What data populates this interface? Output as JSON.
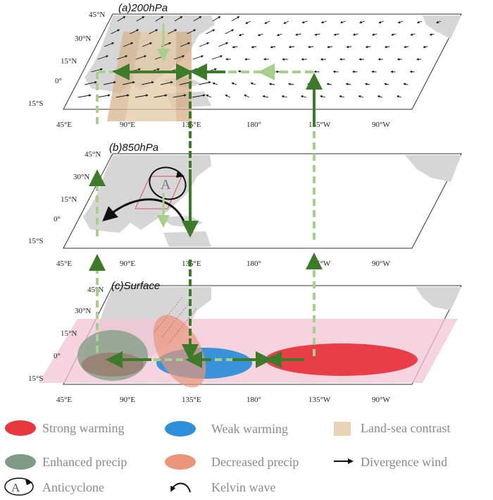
{
  "panels": {
    "a": {
      "title": "(a)200hPa"
    },
    "b": {
      "title": "(b)850hPa"
    },
    "c": {
      "title": "(c)Surface"
    }
  },
  "lat_labels": [
    "45°N",
    "30°N",
    "15°N",
    "0°",
    "15°S"
  ],
  "lon_labels": [
    "45°E",
    "90°E",
    "135°E",
    "180°",
    "135°W",
    "90°W"
  ],
  "anticyclone_letter": "A",
  "legend": {
    "strong_warming": "Strong warming",
    "weak_warming": "Weak warming",
    "land_sea_contrast": "Land-sea contrast",
    "enhanced_precip": "Enhanced precip",
    "decreased_precip": "Decreased precip",
    "divergence_wind": "Divergence wind",
    "anticyclone": "Anticyclone",
    "kelvin_wave": "Kelvin wave"
  },
  "colors": {
    "strong_warming": "#e8363f",
    "weak_warming": "#2f8fd8",
    "land_sea_contrast": "#e9d3b5",
    "enhanced_precip": "#7e9b84",
    "decreased_precip": "#e8957a",
    "dashed_arrow": "#a8d08d",
    "solid_arrow": "#3d7a2a",
    "surface_band": "#f2c6d6",
    "land": "#d6d6d6"
  }
}
